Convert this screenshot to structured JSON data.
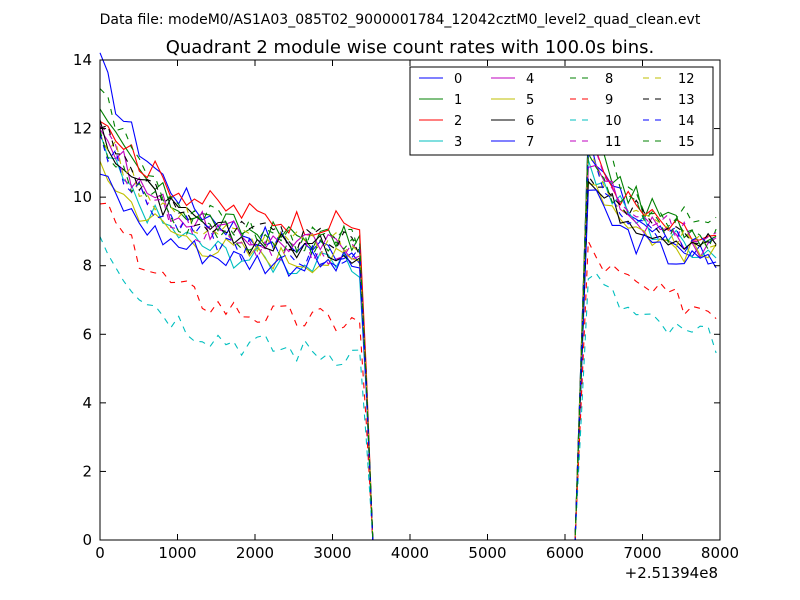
{
  "chart_data": {
    "type": "line",
    "suptitle": "Data file: modeM0/AS1A03_085T02_9000001784_12042cztM0_level2_quad_clean.evt",
    "title": "Quadrant 2 module wise count rates with 100.0s bins.",
    "xlabel": "",
    "ylabel": "",
    "x_offset_label": "+2.51394e8",
    "xlim": [
      0,
      8000
    ],
    "ylim": [
      0,
      14
    ],
    "xticks": [
      0,
      1000,
      2000,
      3000,
      4000,
      5000,
      6000,
      7000,
      8000
    ],
    "yticks": [
      0,
      2,
      4,
      6,
      8,
      10,
      12,
      14
    ],
    "grid": false,
    "legend_position": "top-right",
    "segments": [
      {
        "x_start": 0,
        "x_end": 3350,
        "n_points": 34
      },
      {
        "x_start": 6300,
        "x_end": 7950,
        "n_points": 17
      }
    ],
    "gap": {
      "drop_end": 3520,
      "rise_start": 6130
    },
    "series": [
      {
        "name": "0",
        "color": "#0000ff",
        "dash": "solid",
        "seg1": {
          "start": 13.9,
          "plateau": 8.3,
          "tau": 900
        },
        "seg2": {
          "start": 11.5,
          "plateau": 8.0,
          "tau": 700
        }
      },
      {
        "name": "1",
        "color": "#008000",
        "dash": "solid",
        "seg1": {
          "start": 12.4,
          "plateau": 8.7,
          "tau": 800
        },
        "seg2": {
          "start": 11.8,
          "plateau": 8.6,
          "tau": 700
        }
      },
      {
        "name": "2",
        "color": "#ff0000",
        "dash": "solid",
        "seg1": {
          "start": 12.6,
          "plateau": 9.1,
          "tau": 900
        },
        "seg2": {
          "start": 11.5,
          "plateau": 8.4,
          "tau": 700
        }
      },
      {
        "name": "3",
        "color": "#00bfbf",
        "dash": "solid",
        "seg1": {
          "start": 11.6,
          "plateau": 7.9,
          "tau": 800
        },
        "seg2": {
          "start": 11.0,
          "plateau": 8.2,
          "tau": 700
        }
      },
      {
        "name": "4",
        "color": "#bf00bf",
        "dash": "solid",
        "seg1": {
          "start": 12.1,
          "plateau": 8.5,
          "tau": 800
        },
        "seg2": {
          "start": 11.2,
          "plateau": 8.2,
          "tau": 700
        }
      },
      {
        "name": "5",
        "color": "#bfbf00",
        "dash": "solid",
        "seg1": {
          "start": 11.0,
          "plateau": 8.1,
          "tau": 800
        },
        "seg2": {
          "start": 10.8,
          "plateau": 8.0,
          "tau": 700
        }
      },
      {
        "name": "6",
        "color": "#000000",
        "dash": "solid",
        "seg1": {
          "start": 12.2,
          "plateau": 8.4,
          "tau": 800
        },
        "seg2": {
          "start": 10.5,
          "plateau": 8.5,
          "tau": 700
        }
      },
      {
        "name": "7",
        "color": "#0000ff",
        "dash": "solid",
        "seg1": {
          "start": 10.7,
          "plateau": 8.0,
          "tau": 700
        },
        "seg2": {
          "start": 10.2,
          "plateau": 7.9,
          "tau": 600
        }
      },
      {
        "name": "8",
        "color": "#008000",
        "dash": "dashed",
        "seg1": {
          "start": 13.3,
          "plateau": 8.6,
          "tau": 800
        },
        "seg2": {
          "start": 11.9,
          "plateau": 8.8,
          "tau": 700
        }
      },
      {
        "name": "9",
        "color": "#ff0000",
        "dash": "dashed",
        "seg1": {
          "start": 10.0,
          "plateau": 6.3,
          "tau": 800
        },
        "seg2": {
          "start": 8.5,
          "plateau": 6.6,
          "tau": 700
        }
      },
      {
        "name": "10",
        "color": "#00bfbf",
        "dash": "dashed",
        "seg1": {
          "start": 9.0,
          "plateau": 5.4,
          "tau": 800
        },
        "seg2": {
          "start": 7.9,
          "plateau": 5.6,
          "tau": 700
        }
      },
      {
        "name": "11",
        "color": "#bf00bf",
        "dash": "dashed",
        "seg1": {
          "start": 12.0,
          "plateau": 8.3,
          "tau": 800
        },
        "seg2": {
          "start": 11.6,
          "plateau": 8.4,
          "tau": 700
        }
      },
      {
        "name": "12",
        "color": "#bfbf00",
        "dash": "dashed",
        "seg1": {
          "start": 12.1,
          "plateau": 8.5,
          "tau": 800
        },
        "seg2": {
          "start": 11.3,
          "plateau": 8.3,
          "tau": 700
        }
      },
      {
        "name": "13",
        "color": "#000000",
        "dash": "dashed",
        "seg1": {
          "start": 12.3,
          "plateau": 8.6,
          "tau": 800
        },
        "seg2": {
          "start": 10.8,
          "plateau": 8.6,
          "tau": 700
        }
      },
      {
        "name": "14",
        "color": "#0000ff",
        "dash": "dashed",
        "seg1": {
          "start": 11.8,
          "plateau": 8.2,
          "tau": 800
        },
        "seg2": {
          "start": 10.9,
          "plateau": 8.3,
          "tau": 700
        }
      },
      {
        "name": "15",
        "color": "#008000",
        "dash": "dashed",
        "seg1": {
          "start": 11.9,
          "plateau": 8.4,
          "tau": 800
        },
        "seg2": {
          "start": 11.0,
          "plateau": 8.5,
          "tau": 700
        }
      }
    ]
  }
}
